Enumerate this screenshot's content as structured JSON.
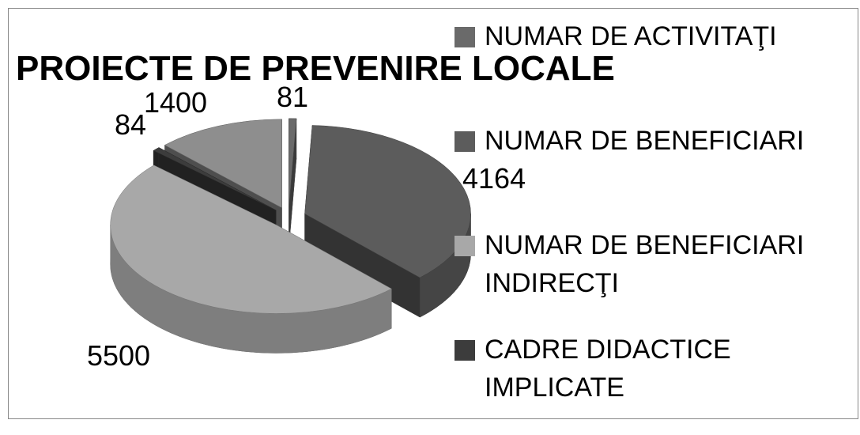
{
  "chart_data": {
    "type": "pie3d",
    "title": "PROIECTE DE PREVENIRE LOCALE",
    "categories": [
      "NUMAR DE ACTIVITAŢI",
      "NUMAR DE BENEFICIARI",
      "NUMAR DE BENEFICIARI INDIRECŢI",
      "CADRE DIDACTICE IMPLICATE",
      null
    ],
    "values": [
      81,
      4164,
      5500,
      84,
      1400
    ],
    "colors": [
      "#6a6a6a",
      "#5c5c5c",
      "#a8a8a8",
      "#3c3c3c",
      "#8e8e8e"
    ]
  }
}
